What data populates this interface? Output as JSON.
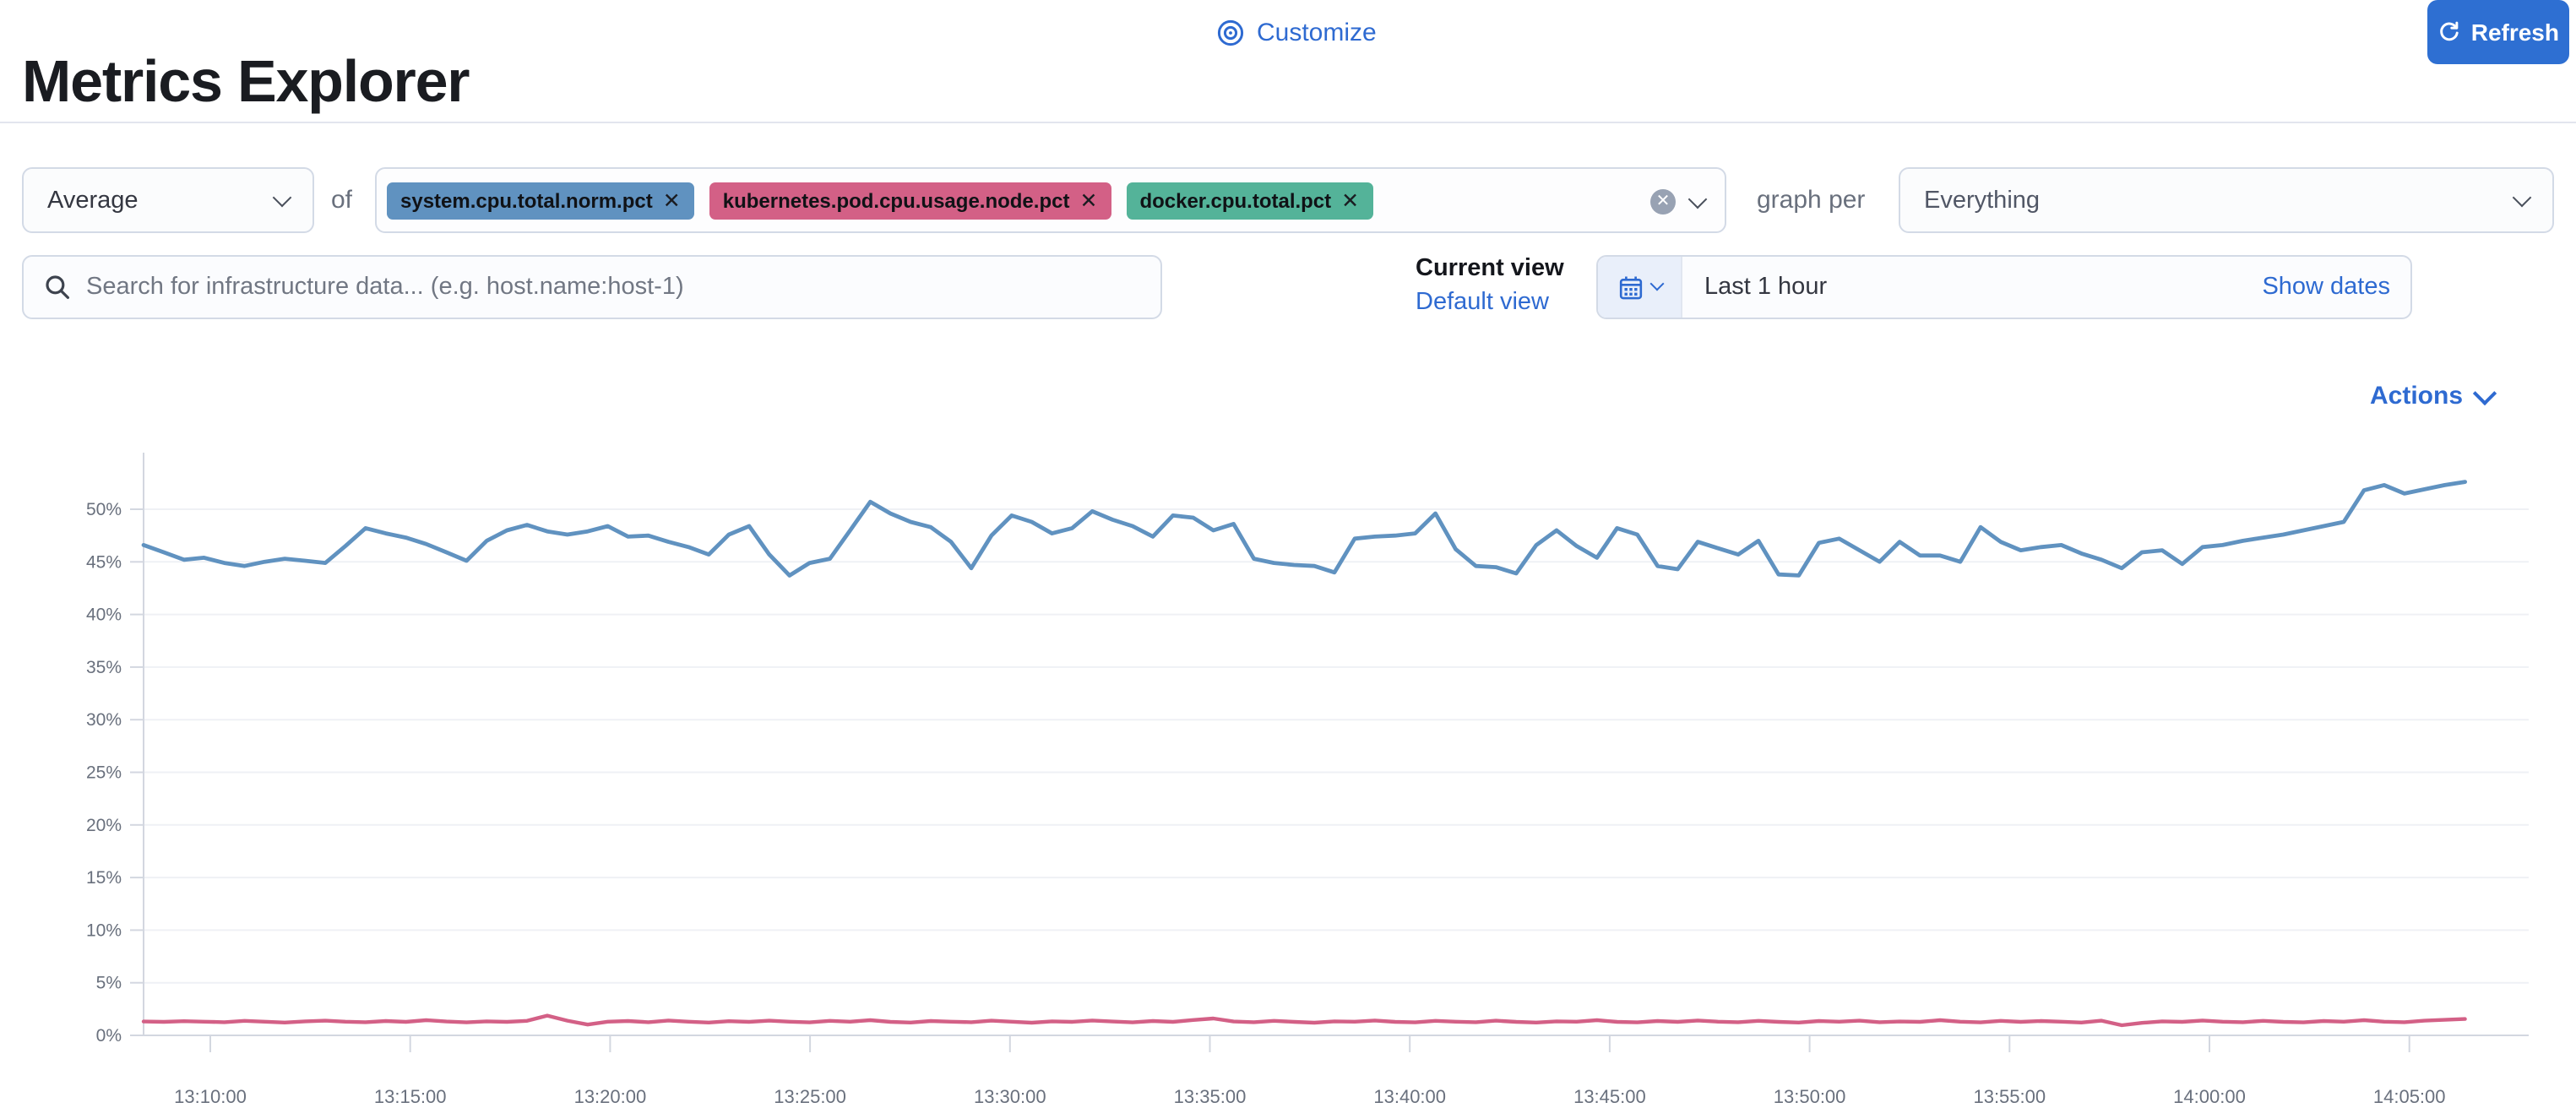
{
  "page": {
    "title": "Metrics Explorer"
  },
  "toolbar": {
    "aggregation": {
      "value": "Average"
    },
    "of_label": "of",
    "metrics": [
      {
        "label": "system.cpu.total.norm.pct",
        "color": "#6092C0"
      },
      {
        "label": "kubernetes.pod.cpu.usage.node.pct",
        "color": "#D36086"
      },
      {
        "label": "docker.cpu.total.pct",
        "color": "#54B399"
      }
    ],
    "remove_glyph": "✕",
    "clear_glyph": "✕",
    "graph_per_label": "graph per",
    "group_by": {
      "value": "Everything"
    }
  },
  "search": {
    "placeholder": "Search for infrastructure data... (e.g. host.name:host-1)"
  },
  "view_controls": {
    "customize_label": "Customize",
    "current_view_label": "Current view",
    "default_view_label": "Default view"
  },
  "datepicker": {
    "value": "Last 1 hour",
    "show_dates_label": "Show dates",
    "refresh_label": "Refresh"
  },
  "chart_header": {
    "actions_label": "Actions"
  },
  "chart_data": {
    "type": "line",
    "title": "",
    "xlabel": "",
    "ylabel": "",
    "legend": "none",
    "grid": "horizontal",
    "ylim": [
      0,
      55
    ],
    "y_tick_values": [
      0,
      5,
      10,
      15,
      20,
      25,
      30,
      35,
      40,
      45,
      50
    ],
    "y_tick_labels": [
      "0%",
      "5%",
      "10%",
      "15%",
      "20%",
      "25%",
      "30%",
      "35%",
      "40%",
      "45%",
      "50%"
    ],
    "x_tick_labels": [
      "13:10:00",
      "13:15:00",
      "13:20:00",
      "13:25:00",
      "13:30:00",
      "13:35:00",
      "13:40:00",
      "13:45:00",
      "13:50:00",
      "13:55:00",
      "14:00:00",
      "14:05:00"
    ],
    "series": [
      {
        "name": "system.cpu.total.norm.pct (avg)",
        "color": "#6092C0",
        "unit": "%",
        "stroke_width": 2.4,
        "values": [
          46.6,
          45.9,
          45.2,
          45.4,
          44.9,
          44.6,
          45.0,
          45.3,
          45.1,
          44.9,
          46.5,
          48.2,
          47.7,
          47.3,
          46.7,
          45.9,
          45.1,
          47.0,
          48.0,
          48.5,
          47.9,
          47.6,
          47.9,
          48.4,
          47.4,
          47.5,
          46.9,
          46.4,
          45.7,
          47.6,
          48.4,
          45.7,
          43.7,
          44.9,
          45.3,
          48.0,
          50.7,
          49.6,
          48.8,
          48.3,
          46.9,
          44.4,
          47.5,
          49.4,
          48.8,
          47.7,
          48.2,
          49.8,
          49.0,
          48.4,
          47.4,
          49.4,
          49.2,
          48.0,
          48.6,
          45.3,
          44.9,
          44.7,
          44.6,
          44.0,
          47.2,
          47.4,
          47.5,
          47.7,
          49.6,
          46.2,
          44.6,
          44.5,
          43.9,
          46.6,
          48.0,
          46.5,
          45.4,
          48.2,
          47.6,
          44.6,
          44.3,
          46.9,
          46.3,
          45.7,
          47.0,
          43.8,
          43.7,
          46.8,
          47.2,
          46.1,
          45.0,
          46.9,
          45.6,
          45.6,
          45.0,
          48.3,
          46.9,
          46.1,
          46.4,
          46.6,
          45.8,
          45.2,
          44.4,
          45.9,
          46.1,
          44.8,
          46.4,
          46.6,
          47.0,
          47.3,
          47.6,
          48.0,
          48.4,
          48.8,
          51.8,
          52.3,
          51.5,
          51.9,
          52.3,
          52.6
        ]
      },
      {
        "name": "kubernetes.pod.cpu.usage.node.pct (avg)",
        "color": "#D36086",
        "unit": "%",
        "stroke_width": 2.2,
        "values": [
          1.32,
          1.28,
          1.35,
          1.3,
          1.25,
          1.38,
          1.3,
          1.22,
          1.33,
          1.4,
          1.3,
          1.26,
          1.36,
          1.28,
          1.44,
          1.32,
          1.24,
          1.34,
          1.28,
          1.38,
          1.88,
          1.4,
          1.02,
          1.3,
          1.36,
          1.26,
          1.42,
          1.3,
          1.22,
          1.35,
          1.28,
          1.4,
          1.3,
          1.24,
          1.38,
          1.3,
          1.45,
          1.28,
          1.22,
          1.36,
          1.3,
          1.26,
          1.4,
          1.3,
          1.2,
          1.34,
          1.28,
          1.42,
          1.32,
          1.24,
          1.36,
          1.28,
          1.46,
          1.6,
          1.32,
          1.26,
          1.38,
          1.28,
          1.2,
          1.34,
          1.3,
          1.42,
          1.28,
          1.24,
          1.38,
          1.3,
          1.26,
          1.4,
          1.28,
          1.22,
          1.34,
          1.3,
          1.44,
          1.28,
          1.24,
          1.36,
          1.28,
          1.42,
          1.3,
          1.26,
          1.38,
          1.28,
          1.22,
          1.36,
          1.3,
          1.4,
          1.26,
          1.32,
          1.28,
          1.44,
          1.3,
          1.24,
          1.38,
          1.28,
          1.36,
          1.3,
          1.22,
          1.4,
          0.96,
          1.18,
          1.34,
          1.28,
          1.42,
          1.3,
          1.26,
          1.38,
          1.28,
          1.24,
          1.36,
          1.3,
          1.44,
          1.3,
          1.26,
          1.4,
          1.48,
          1.55
        ]
      }
    ]
  }
}
